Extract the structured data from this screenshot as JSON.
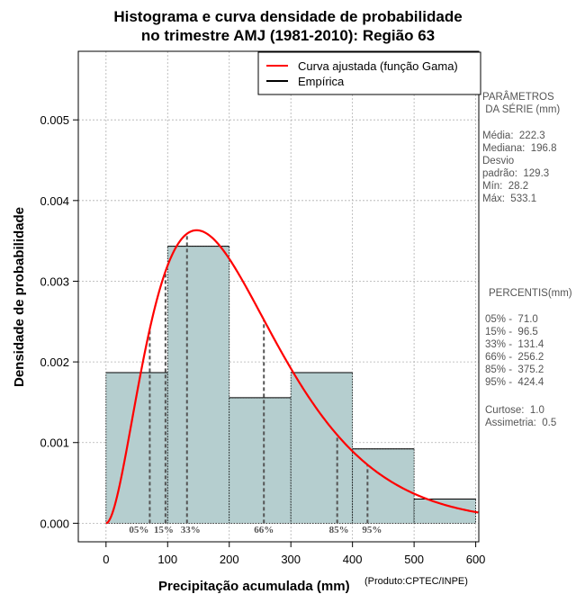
{
  "chart_data": {
    "type": "histogram",
    "title_line1": "Histograma e curva densidade de probabilidade",
    "title_line2": "no trimestre AMJ (1981-2010): Região 63",
    "xlabel": "Precipitação acumulada (mm)",
    "ylabel": "Densidade de probabilidade",
    "credit": "(Produto:CPTEC/INPE)",
    "xlim": [
      -45,
      605
    ],
    "ylim": [
      -0.00023,
      0.00585
    ],
    "x_ticks": [
      "0",
      "100",
      "200",
      "300",
      "400",
      "500",
      "600"
    ],
    "y_ticks": [
      "0.000",
      "0.001",
      "0.002",
      "0.003",
      "0.004",
      "0.005"
    ],
    "bins": [
      {
        "from": 0,
        "to": 100,
        "density": 0.001867
      },
      {
        "from": 100,
        "to": 200,
        "density": 0.003433
      },
      {
        "from": 200,
        "to": 300,
        "density": 0.001556
      },
      {
        "from": 300,
        "to": 400,
        "density": 0.001867
      },
      {
        "from": 400,
        "to": 500,
        "density": 0.000922
      },
      {
        "from": 500,
        "to": 600,
        "density": 0.0003
      }
    ],
    "gamma_fit": {
      "shape": 2.95,
      "scale": 75.4
    },
    "percentile_lines": [
      {
        "label": "05%",
        "value": 71.0
      },
      {
        "label": "15%",
        "value": 96.5
      },
      {
        "label": "33%",
        "value": 131.4
      },
      {
        "label": "66%",
        "value": 256.2
      },
      {
        "label": "85%",
        "value": 375.2
      },
      {
        "label": "95%",
        "value": 424.4
      }
    ],
    "legend": {
      "position": "top-right",
      "items": [
        {
          "label": "Curva ajustada (função Gama)",
          "color": "#ff0000"
        },
        {
          "label": "Empírica",
          "color": "#000000"
        }
      ]
    },
    "colors": {
      "bar_fill": "#b5cecf",
      "curve": "#ff0000",
      "grid": "#b0b0b0"
    }
  },
  "stats": {
    "header_line1": "PARÂMETROS",
    "header_line2": " DA SÉRIE (mm)",
    "media": "Média:  222.3",
    "mediana": "Mediana:  196.8",
    "desvio1": "Desvio",
    "desvio2": "padrão:  129.3",
    "min": "Mín:  28.2",
    "max": "Máx:  533.1"
  },
  "percentis": {
    "header": "PERCENTIS(mm)",
    "p05": "05% -  71.0",
    "p15": "15% -  96.5",
    "p33": "33% -  131.4",
    "p66": "66% -  256.2",
    "p85": "85% -  375.2",
    "p95": "95% -  424.4",
    "curtose": "Curtose:  1.0",
    "assimetria": "Assimetria:  0.5"
  }
}
